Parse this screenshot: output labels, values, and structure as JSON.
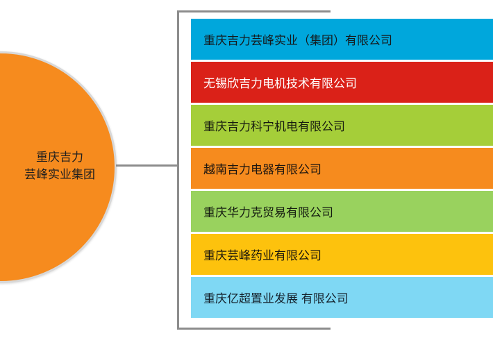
{
  "diagram": {
    "group": {
      "name_lines": [
        "重庆吉力",
        "芸峰实业集团"
      ],
      "color": "#F68B1E",
      "border_color": "#D8D8D8",
      "text_color": "#1F1F1F"
    },
    "connector": {
      "color": "#8C8C8C"
    },
    "companies": [
      {
        "name": "重庆吉力芸峰实业（集团）有限公司",
        "color": "#00A7DC",
        "text_color": "#15191B"
      },
      {
        "name": "无锡欣吉力电机技术有限公司",
        "color": "#DA2118",
        "text_color": "#FFFFFF"
      },
      {
        "name": "重庆吉力科宁机电有限公司",
        "color": "#A5CE39",
        "text_color": "#171B10"
      },
      {
        "name": "越南吉力电器有限公司",
        "color": "#F68B1E",
        "text_color": "#1B1510"
      },
      {
        "name": "重庆华力克贸易有限公司",
        "color": "#99D25E",
        "text_color": "#141B10"
      },
      {
        "name": "重庆芸峰药业有限公司",
        "color": "#FDC20D",
        "text_color": "#1B170D"
      },
      {
        "name": "重庆亿超置业发展 有限公司",
        "color": "#7FD8F4",
        "text_color": "#14202A"
      }
    ]
  }
}
